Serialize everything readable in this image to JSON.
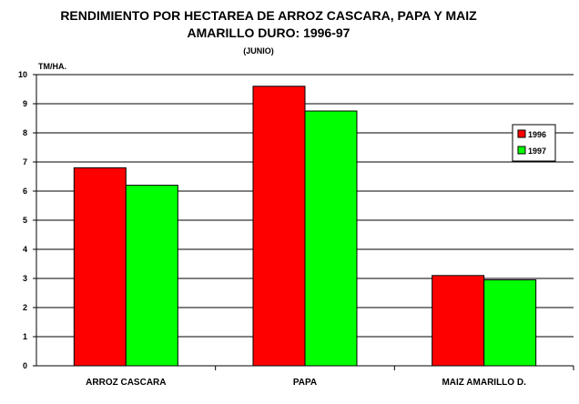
{
  "chart_data": {
    "type": "bar",
    "title": "RENDIMIENTO POR HECTAREA DE ARROZ CASCARA, PAPA Y MAIZ",
    "title_line2": "AMARILLO DURO: 1996-97",
    "subtitle": "(JUNIO)",
    "ylabel": "TM/HA.",
    "xlabel": "",
    "ylim": [
      0,
      10
    ],
    "yticks": [
      "0",
      "1",
      "2",
      "3",
      "4",
      "5",
      "6",
      "7",
      "8",
      "9",
      "10"
    ],
    "grid": true,
    "legend_position": "right",
    "categories": [
      "ARROZ CASCARA",
      "PAPA",
      "MAIZ AMARILLO D."
    ],
    "series": [
      {
        "name": "1996",
        "color": "#ff0000",
        "values": [
          6.8,
          9.6,
          3.1
        ]
      },
      {
        "name": "1997",
        "color": "#00ff00",
        "values": [
          6.2,
          8.75,
          2.95
        ]
      }
    ]
  }
}
